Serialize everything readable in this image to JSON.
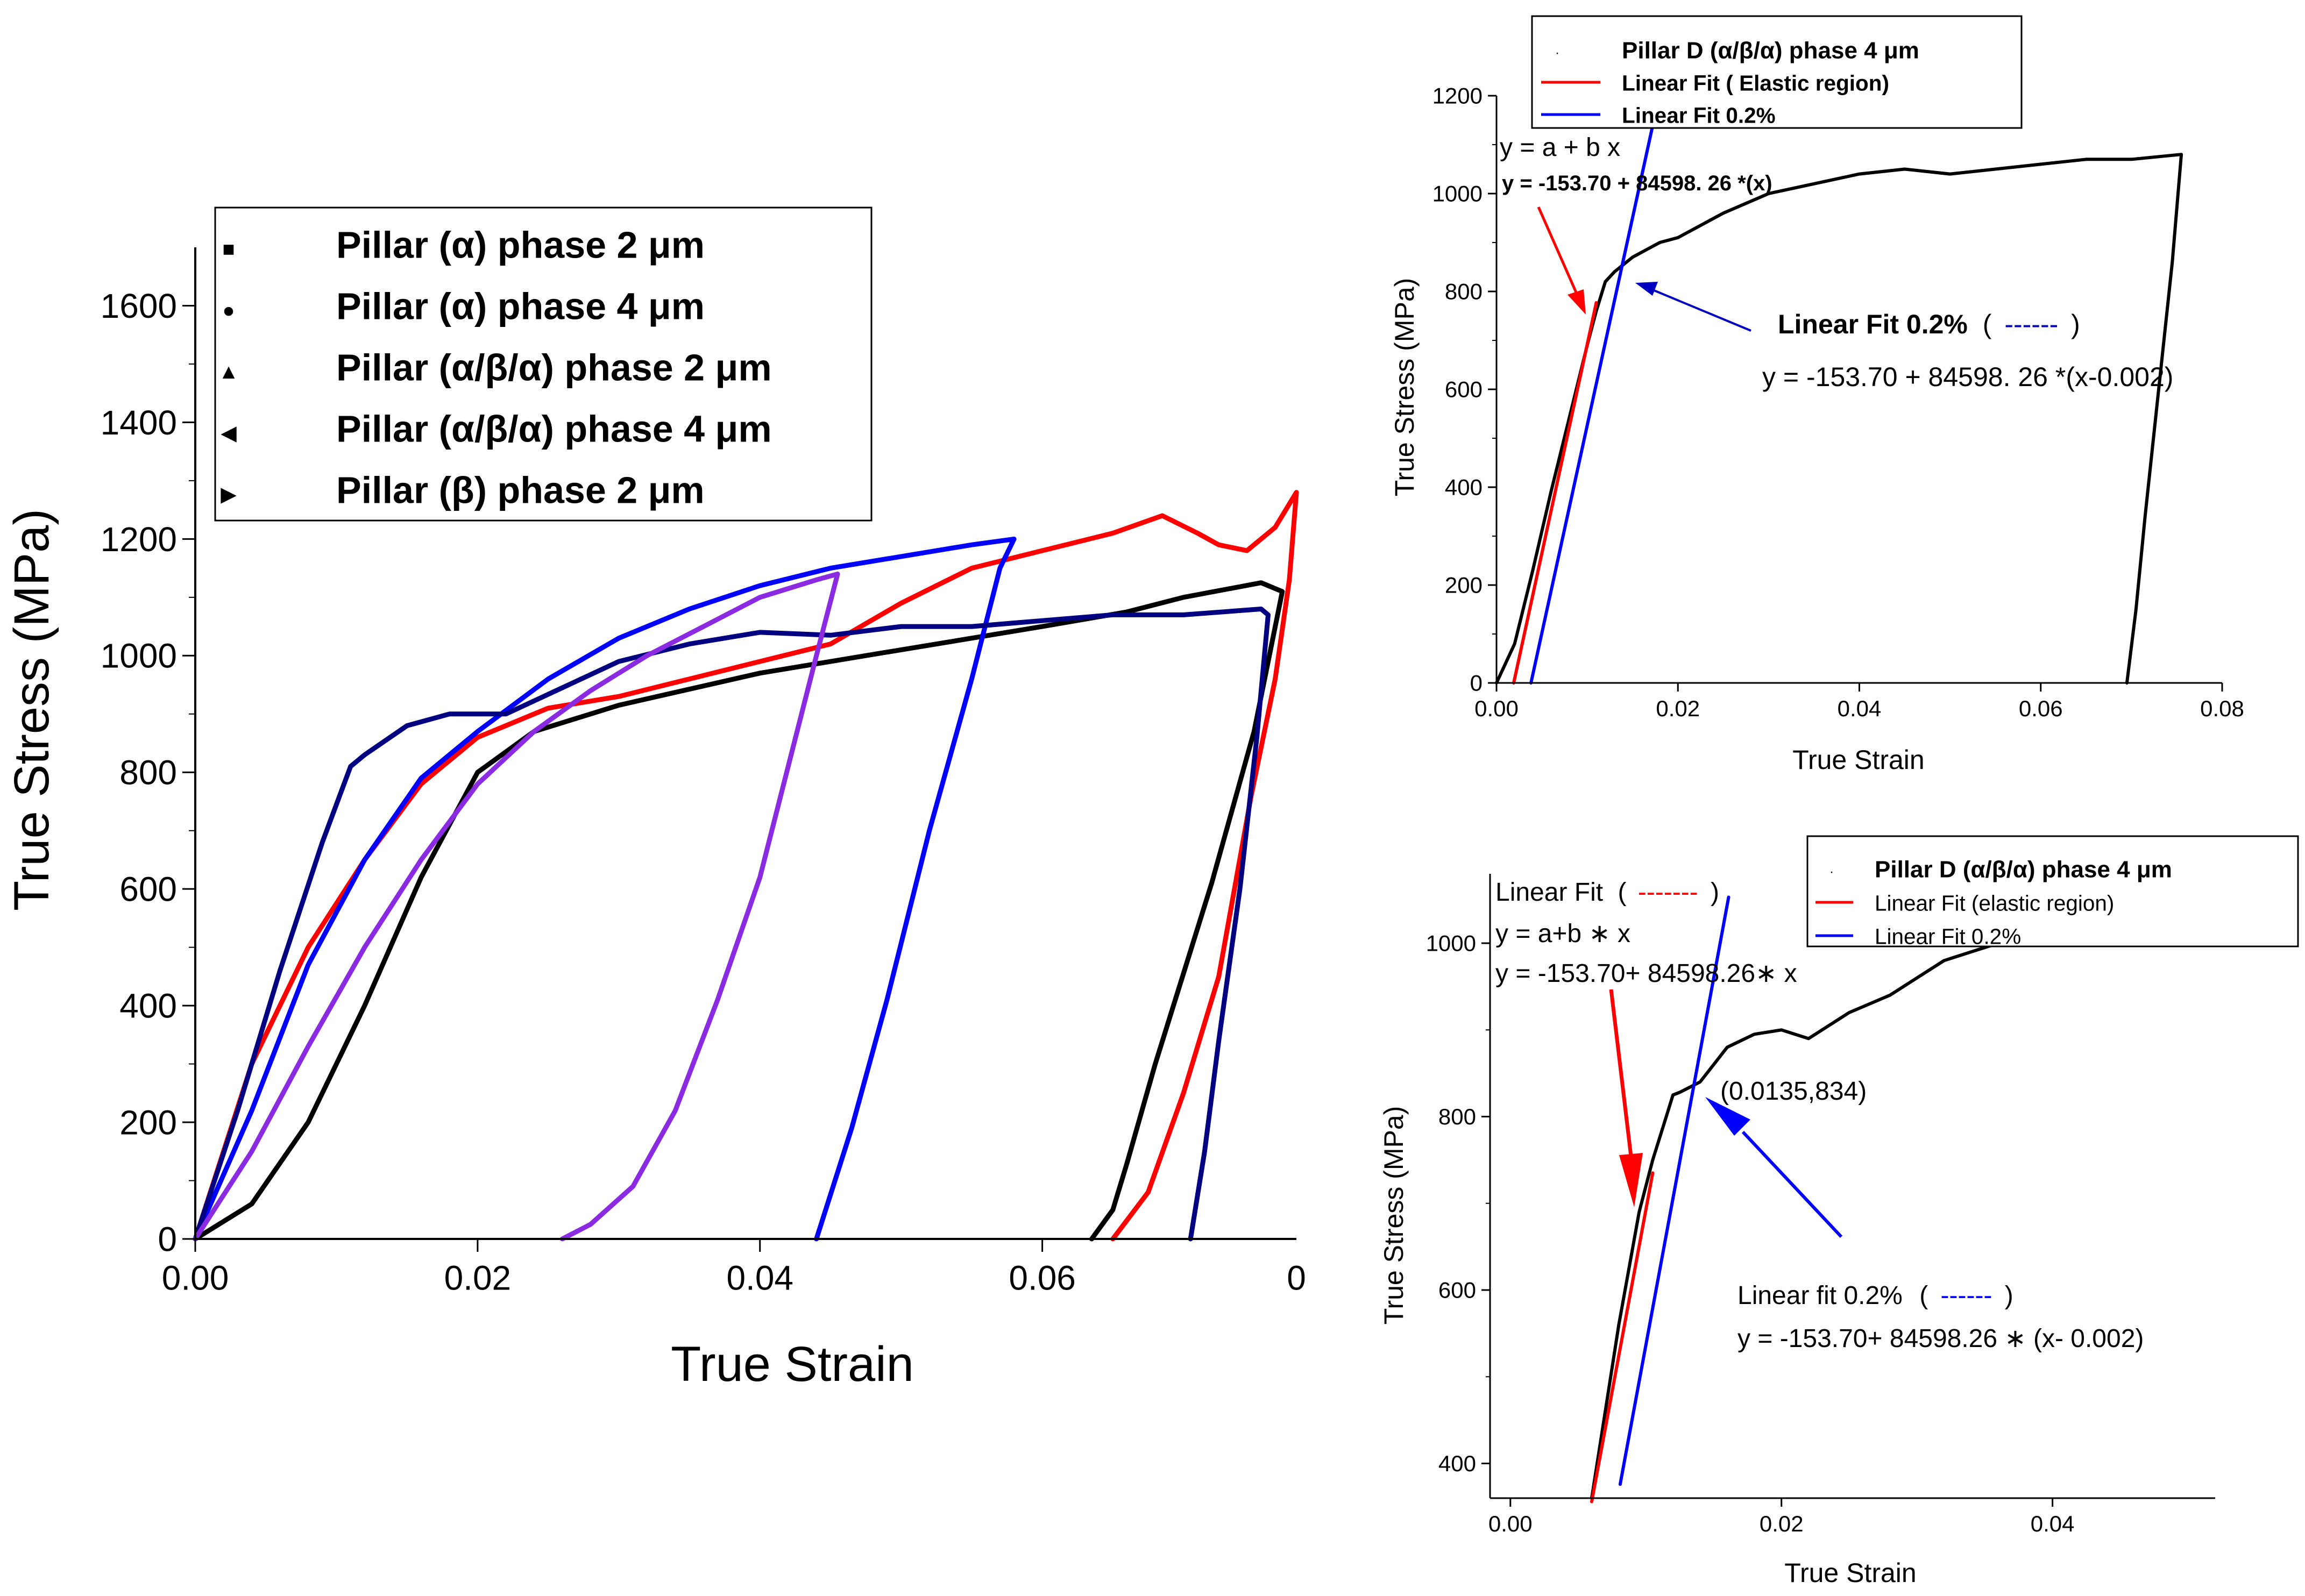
{
  "chart_data": [
    {
      "type": "line",
      "xlabel": "True Strain",
      "ylabel": "True Stress (MPa)",
      "xlim": [
        0,
        0.078
      ],
      "ylim": [
        0,
        1700
      ],
      "xticks": [
        0.0,
        0.02,
        0.04,
        0.06
      ],
      "xtick_labels": [
        "0.00",
        "0.02",
        "0.04",
        "0.06"
      ],
      "xtick_last_label": "0",
      "yticks": [
        0,
        200,
        400,
        600,
        800,
        1000,
        1200,
        1400,
        1600
      ],
      "ytick_labels": [
        "0",
        "200",
        "400",
        "600",
        "800",
        "1000",
        "1200",
        "1400",
        "1600"
      ],
      "legend": [
        {
          "marker": "■",
          "label": "Pillar  (α) phase 2 μm",
          "color": "#000000"
        },
        {
          "marker": "●",
          "label": "Pillar  (α) phase 4 μm",
          "color": "#ff0000"
        },
        {
          "marker": "▲",
          "label": "Pillar (α/β/α) phase 2 μm",
          "color": "#0000ff"
        },
        {
          "marker": "◀",
          "label": "Pillar  (α/β/α) phase 4 μm",
          "color": "#000080"
        },
        {
          "marker": "▶",
          "label": "Pillar  (β) phase 2 μm",
          "color": "#8a2be2"
        }
      ],
      "series": [
        {
          "name": "Pillar (α) phase 2 μm",
          "color": "#000000",
          "x": [
            0,
            0.004,
            0.008,
            0.012,
            0.016,
            0.02,
            0.024,
            0.03,
            0.04,
            0.05,
            0.06,
            0.066,
            0.07,
            0.0755,
            0.077,
            0.075,
            0.072,
            0.068,
            0.066,
            0.065,
            0.0635
          ],
          "y": [
            0,
            60,
            200,
            400,
            620,
            800,
            870,
            915,
            970,
            1010,
            1050,
            1075,
            1100,
            1125,
            1110,
            870,
            610,
            300,
            130,
            50,
            0
          ]
        },
        {
          "name": "Pillar (α) phase 4 μm",
          "color": "#ff0000",
          "x": [
            0,
            0.004,
            0.008,
            0.012,
            0.016,
            0.02,
            0.025,
            0.03,
            0.035,
            0.04,
            0.045,
            0.05,
            0.055,
            0.06,
            0.065,
            0.0685,
            0.071,
            0.0725,
            0.0745,
            0.0765,
            0.078,
            0.0775,
            0.0765,
            0.0748,
            0.0725,
            0.07,
            0.0675,
            0.065
          ],
          "y": [
            0,
            300,
            500,
            650,
            780,
            860,
            910,
            930,
            960,
            990,
            1020,
            1090,
            1150,
            1180,
            1210,
            1240,
            1210,
            1190,
            1180,
            1220,
            1280,
            1130,
            960,
            760,
            450,
            250,
            80,
            0
          ]
        },
        {
          "name": "Pillar (α/β/α) phase 2 μm",
          "color": "#0000ff",
          "x": [
            0,
            0.004,
            0.008,
            0.012,
            0.016,
            0.02,
            0.025,
            0.03,
            0.035,
            0.04,
            0.045,
            0.05,
            0.055,
            0.058,
            0.057,
            0.055,
            0.052,
            0.049,
            0.0465,
            0.044
          ],
          "y": [
            0,
            220,
            470,
            650,
            790,
            870,
            960,
            1030,
            1080,
            1120,
            1150,
            1170,
            1190,
            1200,
            1150,
            960,
            700,
            410,
            190,
            0
          ]
        },
        {
          "name": "Pillar (α/β/α) phase 4 μm",
          "color": "#000080",
          "x": [
            0,
            0.003,
            0.006,
            0.009,
            0.011,
            0.012,
            0.015,
            0.018,
            0.022,
            0.026,
            0.03,
            0.035,
            0.04,
            0.045,
            0.05,
            0.055,
            0.06,
            0.065,
            0.07,
            0.0755,
            0.076,
            0.0752,
            0.074,
            0.0725,
            0.0715,
            0.0705
          ],
          "y": [
            0,
            220,
            460,
            680,
            810,
            830,
            880,
            900,
            900,
            945,
            990,
            1020,
            1040,
            1035,
            1050,
            1050,
            1060,
            1070,
            1070,
            1080,
            1070,
            860,
            600,
            340,
            150,
            0
          ]
        },
        {
          "name": "Pillar (β) phase 2 μm",
          "color": "#8a2be2",
          "x": [
            0,
            0.004,
            0.008,
            0.012,
            0.016,
            0.02,
            0.024,
            0.028,
            0.032,
            0.036,
            0.04,
            0.044,
            0.0455,
            0.044,
            0.042,
            0.04,
            0.037,
            0.034,
            0.031,
            0.028,
            0.026
          ],
          "y": [
            0,
            150,
            330,
            500,
            650,
            780,
            870,
            940,
            1000,
            1050,
            1100,
            1130,
            1140,
            1000,
            810,
            620,
            410,
            220,
            90,
            25,
            0
          ]
        }
      ]
    },
    {
      "type": "line",
      "xlabel": "True Strain",
      "ylabel": "True Stress (MPa)",
      "xlim": [
        0,
        0.08
      ],
      "ylim": [
        0,
        1200
      ],
      "xticks": [
        0.0,
        0.02,
        0.04,
        0.06,
        0.08
      ],
      "xtick_labels": [
        "0.00",
        "0.02",
        "0.04",
        "0.06",
        "0.08"
      ],
      "yticks": [
        0,
        200,
        400,
        600,
        800,
        1000,
        1200
      ],
      "ytick_labels": [
        "0",
        "200",
        "400",
        "600",
        "800",
        "1000",
        "1200"
      ],
      "legend": [
        {
          "marker": "·",
          "label": "Pillar D (α/β/α) phase 4 μm",
          "color": "#000000"
        },
        {
          "marker": "—",
          "label": "Linear Fit ( Elastic region)",
          "color": "#ff0000"
        },
        {
          "marker": "—",
          "label": "Linear Fit 0.2%",
          "color": "#0000ff"
        }
      ],
      "annotations": {
        "fit_formula": "y = a + b x",
        "fit_equation": "y = -153.70 + 84598. 26 *(x)",
        "offset_label": "Linear Fit 0.2%",
        "offset_label_paren_open": "(",
        "offset_label_dash": "------",
        "offset_label_paren_close": ")",
        "offset_equation": "y = -153.70 + 84598. 26 *(x-0.002)"
      },
      "series": [
        {
          "name": "Pillar D (α/β/α) phase 4 μm",
          "color": "#000000",
          "x": [
            0,
            0.002,
            0.004,
            0.006,
            0.008,
            0.01,
            0.011,
            0.012,
            0.013,
            0.015,
            0.018,
            0.02,
            0.025,
            0.03,
            0.035,
            0.04,
            0.045,
            0.05,
            0.055,
            0.06,
            0.065,
            0.07,
            0.0755,
            0.0745,
            0.073,
            0.0715,
            0.0705,
            0.0695
          ],
          "y": [
            0,
            80,
            230,
            390,
            540,
            690,
            760,
            820,
            840,
            870,
            900,
            910,
            960,
            1000,
            1020,
            1040,
            1050,
            1040,
            1050,
            1060,
            1070,
            1070,
            1080,
            860,
            600,
            340,
            150,
            0
          ]
        },
        {
          "name": "Linear Fit ( Elastic region)",
          "color": "#ff0000",
          "x": [
            0.0019,
            0.011
          ],
          "y": [
            0,
            777
          ]
        },
        {
          "name": "Linear Fit 0.2%",
          "color": "#0000ff",
          "x": [
            0.0038,
            0.0177
          ],
          "y": [
            0,
            1180
          ]
        }
      ]
    },
    {
      "type": "line",
      "xlabel": "True Strain",
      "ylabel": "True Stress (MPa)",
      "xlim": [
        -0.0015,
        0.052
      ],
      "ylim": [
        360,
        1080
      ],
      "xticks": [
        0.0,
        0.02,
        0.04
      ],
      "xtick_labels": [
        "0.00",
        "0.02",
        "0.04"
      ],
      "yticks": [
        400,
        600,
        800,
        1000
      ],
      "ytick_labels": [
        "400",
        "600",
        "800",
        "1000"
      ],
      "legend": [
        {
          "marker": "·",
          "label": "Pillar D (α/β/α) phase 4 μm",
          "color": "#000000"
        },
        {
          "marker": "—",
          "label": "Linear Fit (elastic region)",
          "color": "#ff0000"
        },
        {
          "marker": "—",
          "label": "Linear Fit 0.2%",
          "color": "#0000ff"
        }
      ],
      "annotations": {
        "fit_label": "Linear Fit",
        "fit_label_paren_open": "(",
        "fit_label_dash": "-------",
        "fit_label_paren_close": ")",
        "fit_formula": "y = a+b ∗ x",
        "fit_equation": "y = -153.70+ 84598.26∗ x",
        "point_label": "(0.0135,834)",
        "offset_label": "Linear fit 0.2%",
        "offset_label_paren_open": "(",
        "offset_label_dash": "------",
        "offset_label_paren_close": ")",
        "offset_equation": "y = -153.70+ 84598.26 ∗ (x- 0.002)"
      },
      "series": [
        {
          "name": "Pillar D (α/β/α) phase 4 μm",
          "color": "#000000",
          "x": [
            0.006,
            0.008,
            0.0095,
            0.0105,
            0.0115,
            0.012,
            0.0125,
            0.013,
            0.014,
            0.015,
            0.016,
            0.018,
            0.02,
            0.022,
            0.025,
            0.028,
            0.03,
            0.032,
            0.034,
            0.036
          ],
          "y": [
            360,
            560,
            690,
            750,
            800,
            825,
            828,
            832,
            840,
            860,
            880,
            895,
            900,
            890,
            920,
            940,
            960,
            980,
            990,
            1000
          ]
        },
        {
          "name": "Linear Fit (elastic region)",
          "color": "#ff0000",
          "x": [
            0.006,
            0.0105
          ],
          "y": [
            356,
            735
          ]
        },
        {
          "name": "Linear Fit 0.2%",
          "color": "#0000ff",
          "x": [
            0.0081,
            0.0161
          ],
          "y": [
            376,
            1053
          ]
        }
      ]
    }
  ]
}
